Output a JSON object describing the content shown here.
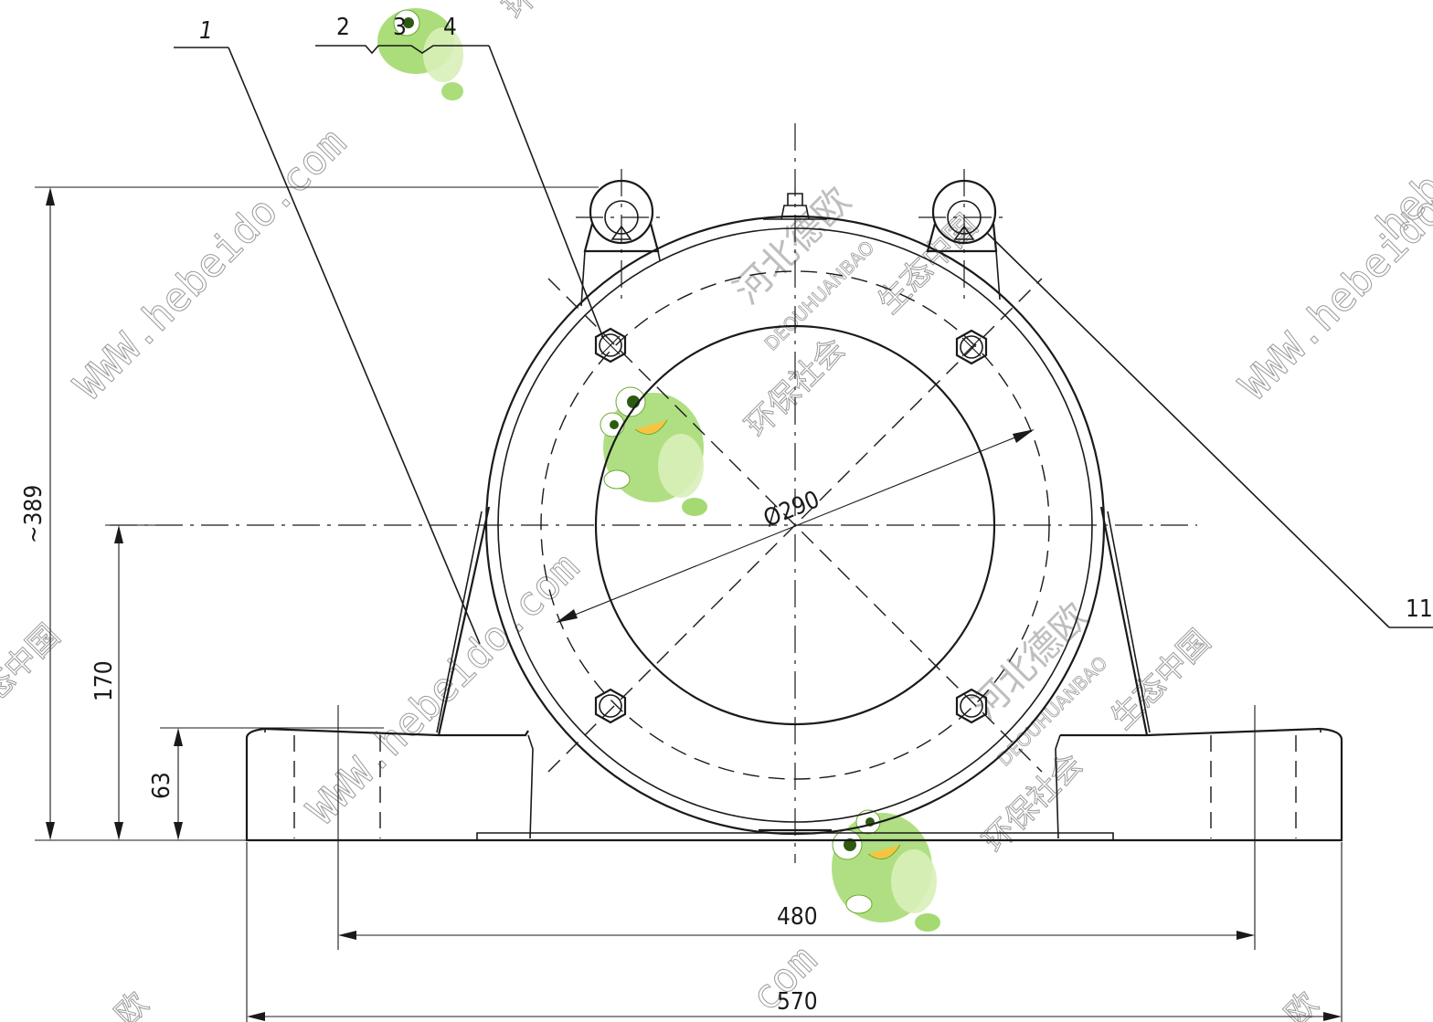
{
  "drawing": {
    "dimensions": {
      "overall_height": "~389",
      "center_height": "170",
      "base_height": "63",
      "bore_diameter": "Ø290",
      "bolt_spacing": "480",
      "overall_length": "570"
    },
    "callouts": {
      "part_1": "1",
      "part_2": "2",
      "part_3": "3",
      "part_4": "4",
      "part_11": "11"
    },
    "watermarks": {
      "url": "WWW.hebeido.com",
      "url_tail": "com",
      "url_fragment": "hebei",
      "cn_company": "河北德欧",
      "cn_pinyin": "DEOUHUANBAO",
      "cn_society": "环保社会",
      "cn_eco": "生态中国",
      "cn_edge_left": "态中国",
      "cn_edge_top": "环",
      "cn_edge_bottom": "欧"
    },
    "colors": {
      "line": "#1a1a1a",
      "watermark": "#9a9a9a",
      "mascot_green": "#8fd14f",
      "mascot_light": "#d8f0b8"
    }
  }
}
